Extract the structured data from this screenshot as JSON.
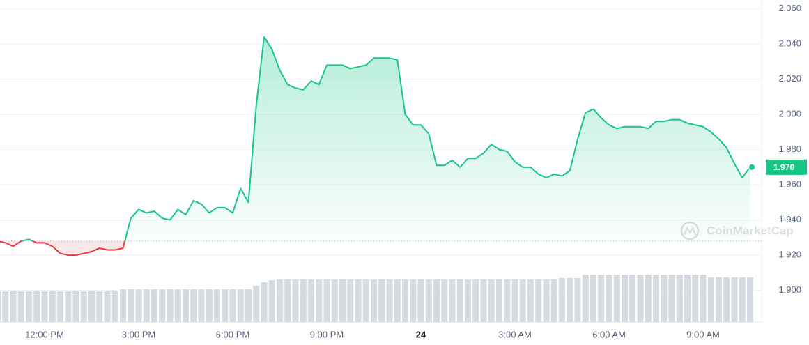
{
  "chart_data": {
    "type": "line",
    "categories": [
      null,
      null,
      null,
      null,
      null,
      null,
      "12:00 PM",
      null,
      null,
      null,
      null,
      null,
      null,
      null,
      null,
      null,
      null,
      null,
      "3:00 PM",
      null,
      null,
      null,
      null,
      null,
      null,
      null,
      null,
      null,
      null,
      null,
      "6:00 PM",
      null,
      null,
      null,
      null,
      null,
      null,
      null,
      null,
      null,
      null,
      null,
      "9:00 PM",
      null,
      null,
      null,
      null,
      null,
      null,
      null,
      null,
      null,
      null,
      null,
      "24",
      null,
      null,
      null,
      null,
      null,
      null,
      null,
      null,
      null,
      null,
      null,
      "3:00 AM",
      null,
      null,
      null,
      null,
      null,
      null,
      null,
      null,
      null,
      null,
      null,
      "6:00 AM",
      null,
      null,
      null,
      null,
      null,
      null,
      null,
      null,
      null,
      null,
      null,
      "9:00 AM",
      null,
      null,
      null,
      null,
      null,
      null
    ],
    "values": [
      1.928,
      1.927,
      1.925,
      1.928,
      1.929,
      1.927,
      1.927,
      1.925,
      1.921,
      1.92,
      1.92,
      1.921,
      1.922,
      1.924,
      1.923,
      1.923,
      1.924,
      1.941,
      1.946,
      1.944,
      1.945,
      1.941,
      1.94,
      1.946,
      1.943,
      1.951,
      1.949,
      1.944,
      1.947,
      1.947,
      1.944,
      1.958,
      1.95,
      2.005,
      2.044,
      2.037,
      2.025,
      2.017,
      2.015,
      2.014,
      2.019,
      2.017,
      2.028,
      2.028,
      2.028,
      2.026,
      2.027,
      2.028,
      2.032,
      2.032,
      2.032,
      2.031,
      2.0,
      1.994,
      1.994,
      1.989,
      1.971,
      1.971,
      1.974,
      1.97,
      1.975,
      1.975,
      1.978,
      1.983,
      1.98,
      1.979,
      1.973,
      1.97,
      1.97,
      1.966,
      1.964,
      1.966,
      1.965,
      1.968,
      1.986,
      2.001,
      2.003,
      1.998,
      1.994,
      1.992,
      1.993,
      1.993,
      1.993,
      1.992,
      1.996,
      1.996,
      1.997,
      1.997,
      1.995,
      1.994,
      1.993,
      1.99,
      1.986,
      1.981,
      1.972,
      1.964,
      1.97
    ],
    "volume": [
      44,
      44,
      44,
      44,
      44,
      44,
      44,
      44,
      44,
      44,
      44,
      44,
      44,
      44,
      44,
      44,
      47,
      47,
      47,
      47,
      47,
      47,
      47,
      47,
      47,
      47,
      47,
      47,
      47,
      47,
      47,
      47,
      47,
      52,
      57,
      60,
      61,
      61,
      61,
      61,
      61,
      61,
      61,
      61,
      61,
      61,
      61,
      61,
      61,
      61,
      61,
      61,
      61,
      61,
      61,
      61,
      61,
      61,
      61,
      61,
      61,
      61,
      61,
      61,
      61,
      61,
      61,
      61,
      61,
      61,
      61,
      61,
      63,
      63,
      63,
      68,
      68,
      68,
      68,
      68,
      68,
      68,
      68,
      68,
      68,
      68,
      68,
      68,
      68,
      68,
      68,
      64,
      64,
      64,
      64,
      64,
      64
    ],
    "baseline": 1.928,
    "current_price": {
      "value": 1.97,
      "label": "1.970"
    },
    "up_color": "#16c784",
    "down_color": "#ea3943",
    "volume_color": "#d6dae1",
    "ylim": [
      1.882,
      2.065
    ],
    "yticks": [
      {
        "value": 1.9,
        "label": "1.900"
      },
      {
        "value": 1.92,
        "label": "1.920"
      },
      {
        "value": 1.94,
        "label": "1.940"
      },
      {
        "value": 1.96,
        "label": "1.960"
      },
      {
        "value": 1.98,
        "label": "1.980"
      },
      {
        "value": 2.0,
        "label": "2.000"
      },
      {
        "value": 2.02,
        "label": "2.020"
      },
      {
        "value": 2.04,
        "label": "2.040"
      },
      {
        "value": 2.06,
        "label": "2.060"
      }
    ],
    "grid": true,
    "watermark": "CoinMarketCap"
  }
}
